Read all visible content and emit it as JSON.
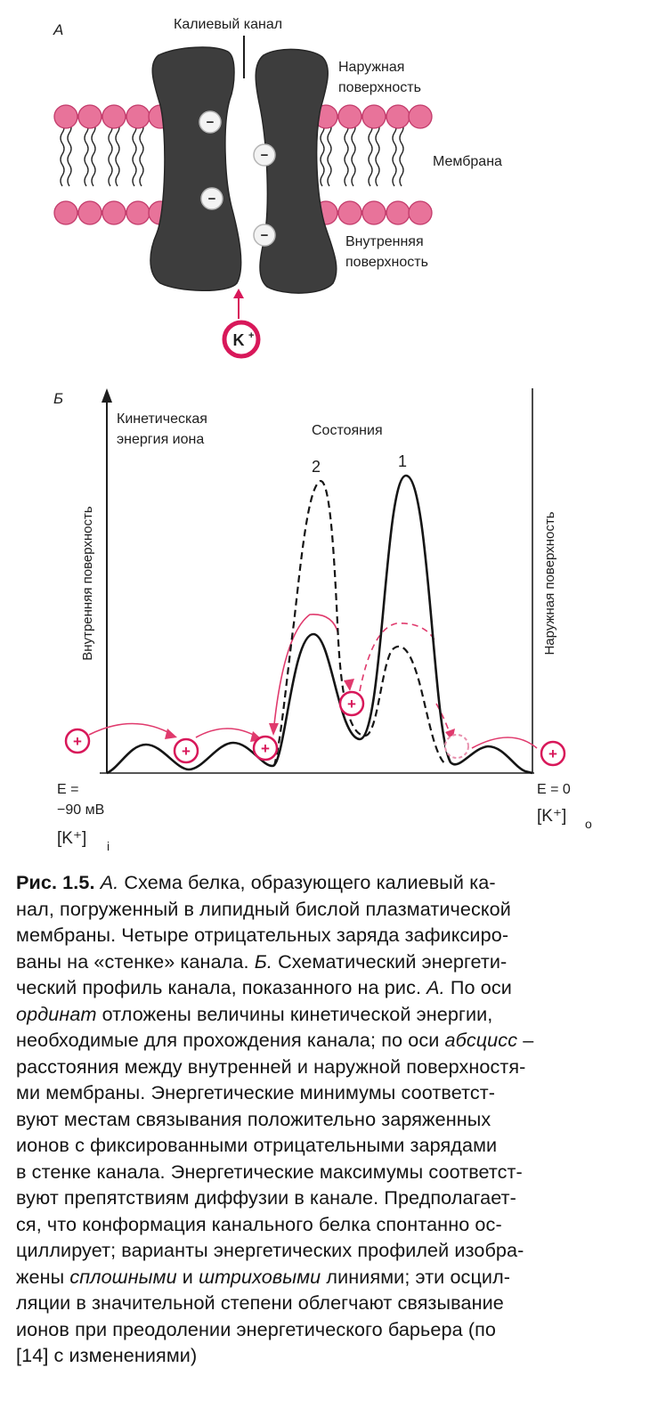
{
  "panel_a": {
    "letter": "А",
    "channel_label": "Калиевый канал",
    "outer_surface_label": [
      "Наружная",
      "поверхность"
    ],
    "membrane_label": "Мембрана",
    "inner_surface_label": [
      "Внутренняя",
      "поверхность"
    ],
    "ion_label": "K",
    "fixed_charge_symbol": "−",
    "colors": {
      "protein": "#3d3d3d",
      "lipid_head": "#e8739a",
      "accent": "#d8185a"
    }
  },
  "panel_b": {
    "letter": "Б",
    "y_axis_title": [
      "Кинетическая",
      "энергия иона"
    ],
    "states_label": "Состояния",
    "state_1_label": "1",
    "state_2_label": "2",
    "left_vertical_label": "Внутренняя поверхность",
    "right_vertical_label": "Наружная поверхность",
    "left_potential": [
      "E =",
      "−90 мВ"
    ],
    "left_concentration": "[K⁺]",
    "left_concentration_sub": "i",
    "right_potential": "E = 0",
    "right_concentration": "[K⁺]",
    "right_concentration_sub": "o",
    "ion_symbol": "+",
    "colors": {
      "profile": "#151515",
      "ion": "#d8185a",
      "ion_path": "#e03a6d"
    }
  },
  "caption": {
    "fig_label": "Рис. 1.5.",
    "parts": [
      {
        "text": "А.",
        "style": "italic"
      },
      {
        "text": " Схема белка, образующего калиевый ка-\nнал, погруженный в липидный бислой плазматической\nмембраны. Четыре отрицательных заряда зафиксиро-\nваны на «стенке» канала. ",
        "style": "normal"
      },
      {
        "text": "Б.",
        "style": "italic"
      },
      {
        "text": " Схематический энергети-\nческий профиль канала, показанного на рис. ",
        "style": "normal"
      },
      {
        "text": "А.",
        "style": "italic"
      },
      {
        "text": " По оси\n",
        "style": "normal"
      },
      {
        "text": "ординат",
        "style": "italic"
      },
      {
        "text": " отложены величины кинетической энергии,\nнеобходимые для прохождения канала; по оси ",
        "style": "normal"
      },
      {
        "text": "абсцисс",
        "style": "italic"
      },
      {
        "text": " –\nрасстояния между внутренней и наружной поверхностя-\nми мембраны. Энергетические минимумы соответст-\nвуют местам связывания положительно заряженных\nионов с фиксированными отрицательными зарядами\nв стенке канала. Энергетические максимумы соответст-\nвуют препятствиям диффузии в канале. Предполагает-\nся, что конформация канального белка спонтанно ос-\nциллирует; варианты энергетических профилей изобра-\nжены ",
        "style": "normal"
      },
      {
        "text": "сплошными",
        "style": "italic"
      },
      {
        "text": " и ",
        "style": "normal"
      },
      {
        "text": "штриховыми",
        "style": "italic"
      },
      {
        "text": " линиями; эти осцил-\nляции в значительной степени облегчают связывание\nионов при преодолении энергетического барьера (по\n[14] с изменениями)",
        "style": "normal"
      }
    ]
  }
}
